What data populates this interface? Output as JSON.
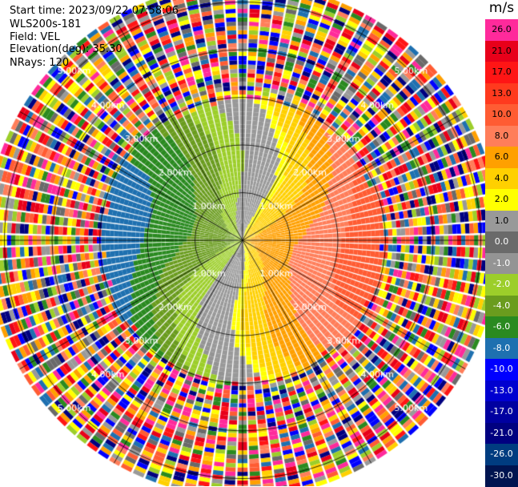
{
  "header": {
    "start_time_label": "Start time:",
    "start_time_value": "2023/09/22 07:58:06",
    "instrument": "WLS200s-181",
    "field_label": "Field:",
    "field_value": "VEL",
    "elevation_label": "Elevation(deg):",
    "elevation_value": "35.30",
    "nrays_label": "NRays:",
    "nrays_value": "120"
  },
  "chart_data": {
    "type": "ppi",
    "field": "VEL",
    "units": "m/s",
    "elevation_deg": 35.3,
    "n_rays": 120,
    "range_rings_km": [
      1,
      2,
      3,
      4,
      5
    ],
    "range_ring_labels": [
      "1.00km",
      "2.00km",
      "3.00km",
      "4.00km",
      "5.00km"
    ],
    "max_range_km": 5.4,
    "spokes_deg": [
      0,
      30,
      60,
      90,
      120,
      150,
      180,
      210,
      240,
      270,
      300,
      330
    ],
    "valid_range_km": 2.95,
    "colorbar": {
      "ticks": [
        "26.0",
        "21.0",
        "17.0",
        "13.0",
        "10.0",
        "8.0",
        "6.0",
        "4.0",
        "2.0",
        "1.0",
        "0.0",
        "-1.0",
        "-2.0",
        "-4.0",
        "-6.0",
        "-8.0",
        "-10.0",
        "-13.0",
        "-17.0",
        "-21.0",
        "-26.0",
        "-30.0"
      ],
      "colors": [
        "#ff2a9b",
        "#e8001a",
        "#ff1515",
        "#ff3a1e",
        "#ff5c33",
        "#ff7e5a",
        "#ffa000",
        "#ffd000",
        "#ffff00",
        "#999999",
        "#6a6a6a",
        "#949494",
        "#9cce2a",
        "#6a9c1e",
        "#2a8a20",
        "#1e70b0",
        "#0000ff",
        "#0000d0",
        "#0000a0",
        "#000080",
        "#003c80",
        "#001450"
      ],
      "label_colors": [
        "#000000",
        "#000000",
        "#000000",
        "#000000",
        "#000000",
        "#000000",
        "#000000",
        "#000000",
        "#000000",
        "#000000",
        "#ffffff",
        "#ffffff",
        "#ffffff",
        "#ffffff",
        "#ffffff",
        "#ffffff",
        "#ffffff",
        "#ffffff",
        "#ffffff",
        "#ffffff",
        "#ffffff",
        "#ffffff"
      ]
    },
    "velocity_model": {
      "description_values_ms": {
        "east_max": 8,
        "west_min": -8,
        "zero_line_bearing_deg": 0
      },
      "shear_ms_per_km": 2.5
    },
    "noise_palette": [
      "#ff2a9b",
      "#e8001a",
      "#ff1515",
      "#ff7e5a",
      "#ffa000",
      "#ffff00",
      "#999999",
      "#9cce2a",
      "#2a8a20",
      "#1e70b0",
      "#0000ff",
      "#000080",
      "#6a6a6a",
      "#ffd000",
      "#ff5c33"
    ]
  }
}
